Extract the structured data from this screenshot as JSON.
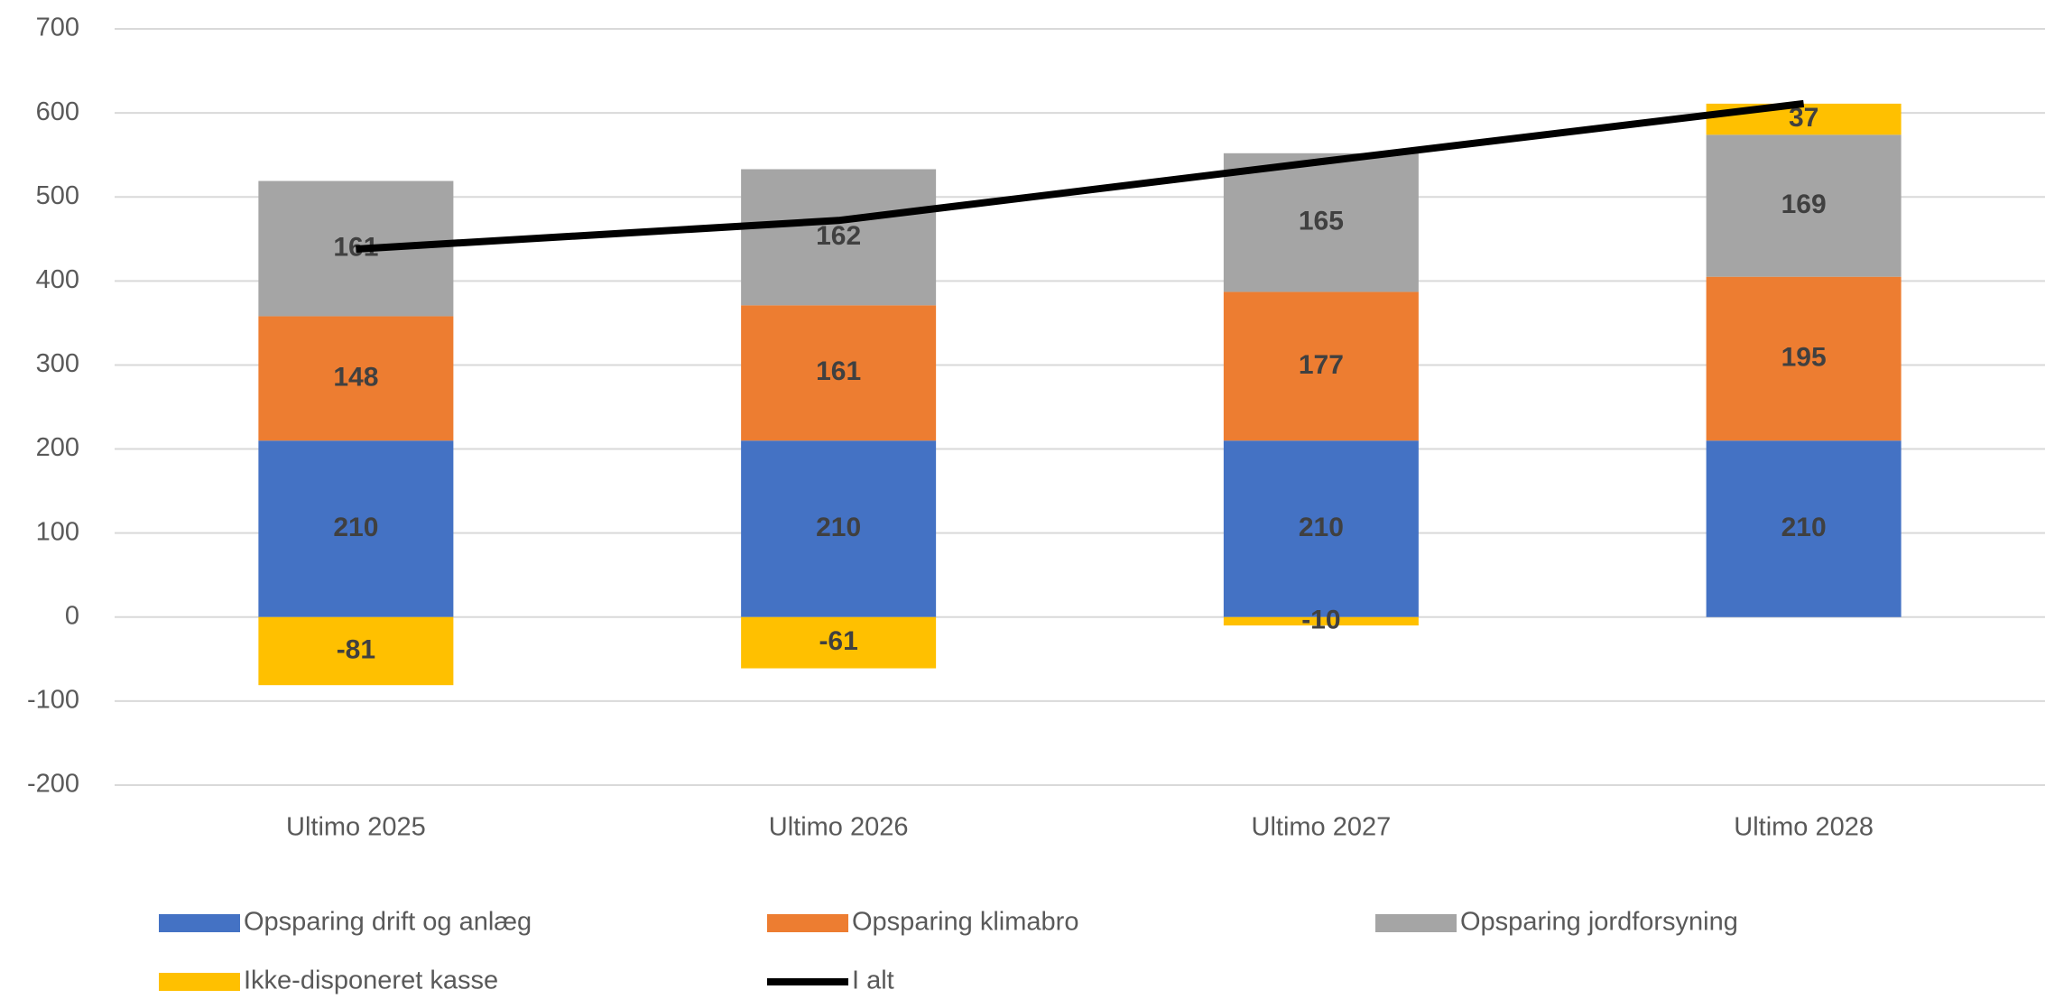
{
  "chart_data": {
    "type": "bar",
    "stacked": true,
    "categories": [
      "Ultimo 2025",
      "Ultimo 2026",
      "Ultimo 2027",
      "Ultimo 2028"
    ],
    "series": [
      {
        "name": "Opsparing drift og anlæg",
        "color": "#4472c4",
        "values": [
          210,
          210,
          210,
          210
        ]
      },
      {
        "name": "Opsparing klimabro",
        "color": "#ed7d31",
        "values": [
          148,
          161,
          177,
          195
        ]
      },
      {
        "name": "Opsparing jordforsyning",
        "color": "#a5a5a5",
        "values": [
          161,
          162,
          165,
          169
        ]
      },
      {
        "name": "Ikke-disponeret kasse",
        "color": "#ffc000",
        "values": [
          -81,
          -61,
          -10,
          37
        ]
      },
      {
        "name": "I alt",
        "color": "#000000",
        "type": "line",
        "values": [
          438,
          472,
          542,
          611
        ]
      }
    ],
    "ylim": [
      -200,
      700
    ],
    "yticks": [
      -200,
      -100,
      0,
      100,
      200,
      300,
      400,
      500,
      600,
      700
    ],
    "grid": true,
    "legend": "bottom"
  }
}
